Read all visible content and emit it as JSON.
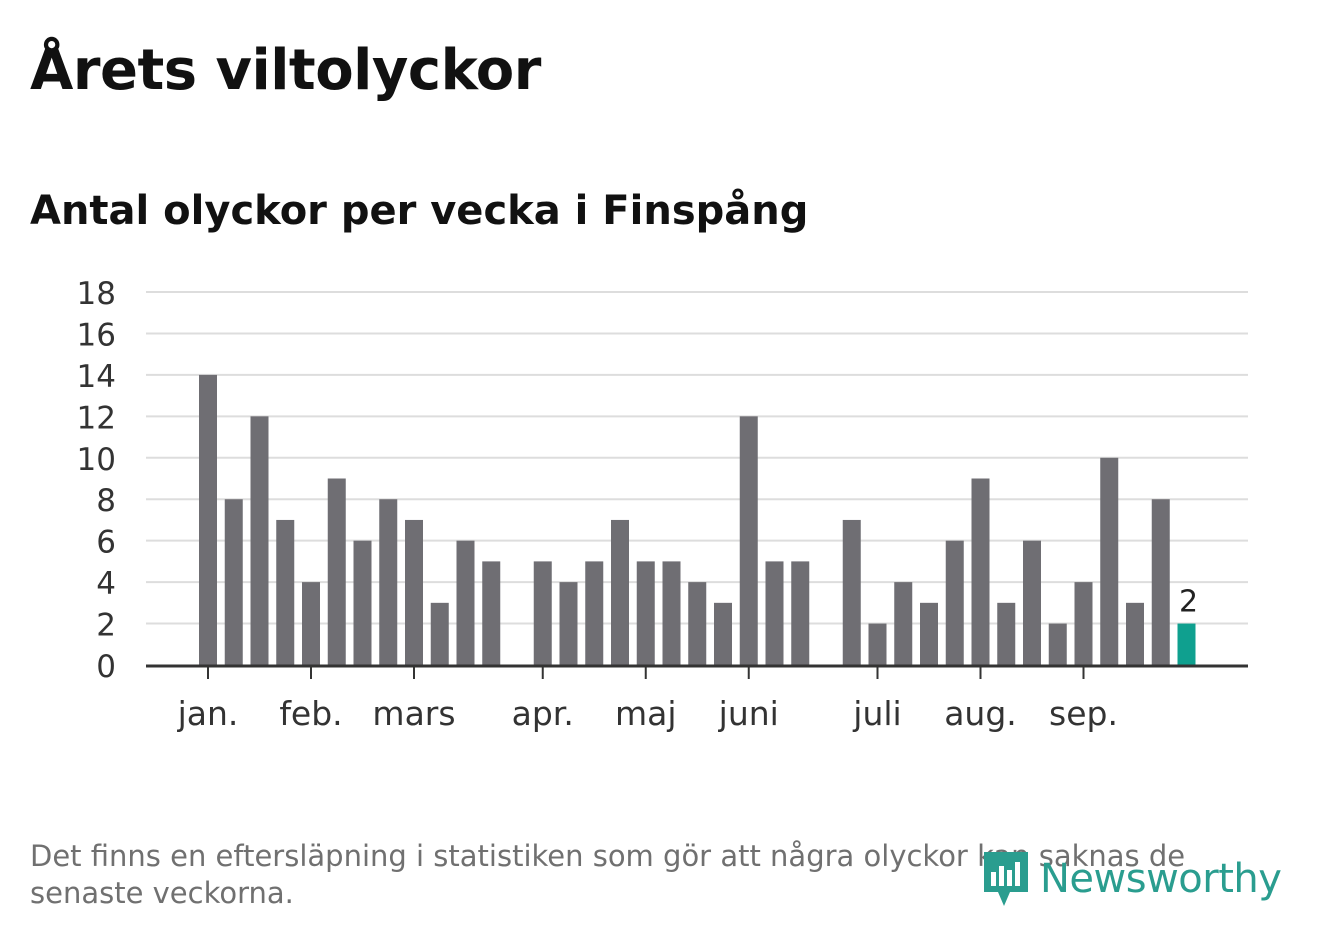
{
  "header": {
    "title": "Årets viltolyckor",
    "subtitle": "Antal olyckor per vecka i Finspång"
  },
  "chart_data": {
    "type": "bar",
    "title": "Antal olyckor per vecka i Finspång",
    "xlabel": "",
    "ylabel": "",
    "ylim": [
      0,
      18
    ],
    "yticks": [
      "0",
      "2",
      "4",
      "6",
      "8",
      "10",
      "12",
      "14",
      "16",
      "18"
    ],
    "grid": true,
    "weeks": [
      1,
      2,
      3,
      4,
      5,
      6,
      7,
      8,
      9,
      10,
      11,
      12,
      13,
      14,
      15,
      16,
      17,
      18,
      19,
      20,
      21,
      22,
      23,
      24,
      25,
      26,
      27,
      28,
      29,
      30,
      31,
      32,
      33,
      34,
      35,
      36,
      37,
      38,
      39
    ],
    "values": [
      14,
      8,
      12,
      7,
      4,
      9,
      6,
      8,
      7,
      3,
      6,
      5,
      0,
      5,
      4,
      5,
      7,
      5,
      5,
      4,
      3,
      12,
      5,
      5,
      0,
      7,
      2,
      4,
      3,
      6,
      9,
      3,
      6,
      2,
      4,
      10,
      3,
      8,
      2
    ],
    "highlight_index": 38,
    "highlight_label": "2",
    "month_labels": [
      {
        "label": "jan.",
        "week": 1
      },
      {
        "label": "feb.",
        "week": 5
      },
      {
        "label": "mars",
        "week": 9
      },
      {
        "label": "apr.",
        "week": 14
      },
      {
        "label": "maj",
        "week": 18
      },
      {
        "label": "juni",
        "week": 22
      },
      {
        "label": "juli",
        "week": 27
      },
      {
        "label": "aug.",
        "week": 31
      },
      {
        "label": "sep.",
        "week": 35
      }
    ],
    "colors": {
      "bar": "#6f6e73",
      "highlight": "#0fa08f",
      "grid": "#dddddd",
      "axis": "#333333",
      "text": "#333333"
    }
  },
  "footer": {
    "note": "Det finns en eftersläpning i statistiken som gör att några olyckor kan saknas de senaste veckorna.",
    "brand": "Newsworthy",
    "brand_color": "#2a9d8f",
    "brand_icon": "newsworthy-logo-icon"
  }
}
